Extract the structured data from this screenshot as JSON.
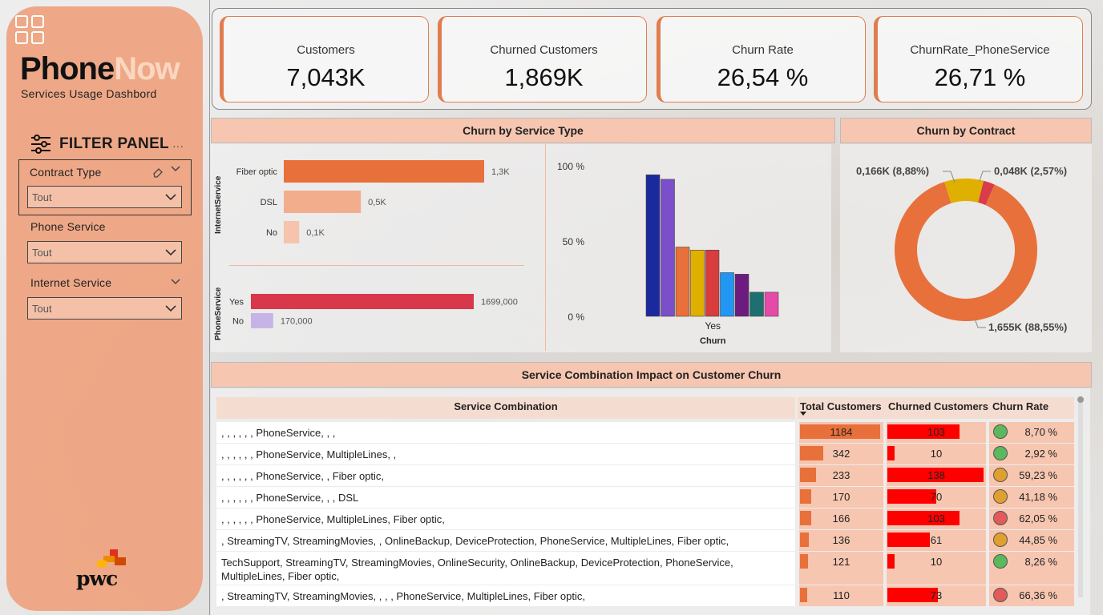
{
  "brand": {
    "name_part1": "Phone",
    "name_part2": "Now",
    "subtitle": "Services Usage Dashbord"
  },
  "filter_panel": {
    "title": "FILTER PANEL",
    "more": "···",
    "filters": [
      {
        "label": "Contract Type",
        "value": "Tout"
      },
      {
        "label": "Phone Service",
        "value": "Tout"
      },
      {
        "label": "Internet Service",
        "value": "Tout"
      }
    ]
  },
  "footer_logo": "pwc",
  "kpis": [
    {
      "title": "Customers",
      "value": "7,043K"
    },
    {
      "title": "Churned Customers",
      "value": "1,869K"
    },
    {
      "title": "Churn Rate",
      "value": "26,54 %"
    },
    {
      "title": "ChurnRate_PhoneService",
      "value": "26,71 %"
    }
  ],
  "panels": {
    "service_type": "Churn by Service Type",
    "contract": "Churn by Contract",
    "combination": "Service Combination Impact on Customer Churn"
  },
  "colors": {
    "accent": "#e8703b",
    "sidebar": "#eda583",
    "header": "#f6c6b0",
    "churn_red": "#ff0000"
  },
  "chart_data": [
    {
      "type": "bar",
      "orientation": "horizontal",
      "group_label": "InternetService",
      "categories": [
        "Fiber optic",
        "DSL",
        "No"
      ],
      "values": [
        1300,
        500,
        100
      ],
      "data_labels": [
        "1,3K",
        "0,5K",
        "0,1K"
      ],
      "colors": [
        "#e8703b",
        "#f2ad8d",
        "#f6c3ad"
      ]
    },
    {
      "type": "bar",
      "orientation": "horizontal",
      "group_label": "PhoneService",
      "categories": [
        "Yes",
        "No"
      ],
      "values": [
        1699000,
        170000
      ],
      "data_labels": [
        "1699,000",
        "170,000"
      ],
      "colors": [
        "#d9374a",
        "#c6b4e6"
      ]
    },
    {
      "type": "bar",
      "xlabel": "Churn",
      "categories": [
        "Yes"
      ],
      "yticks": [
        "100 %",
        "50 %",
        "0 %"
      ],
      "ylim": [
        0,
        100
      ],
      "series": [
        {
          "values": [
            94
          ],
          "color": "#1a2a9c"
        },
        {
          "values": [
            91
          ],
          "color": "#7a4fc9"
        },
        {
          "values": [
            46
          ],
          "color": "#e8703b"
        },
        {
          "values": [
            44
          ],
          "color": "#e0b000"
        },
        {
          "values": [
            44
          ],
          "color": "#d83c3c"
        },
        {
          "values": [
            29
          ],
          "color": "#2196f3"
        },
        {
          "values": [
            28
          ],
          "color": "#6e1b80"
        },
        {
          "values": [
            16
          ],
          "color": "#1e6f70"
        },
        {
          "values": [
            16
          ],
          "color": "#e64aa9"
        }
      ]
    },
    {
      "type": "pie",
      "donut": true,
      "slices": [
        {
          "value": 1655,
          "label": "1,655K (88,55%)",
          "color": "#e8703b"
        },
        {
          "value": 166,
          "label": "0,166K (8,88%)",
          "color": "#e0b000"
        },
        {
          "value": 48,
          "label": "0,048K (2,57%)",
          "color": "#d83c4a"
        }
      ]
    }
  ],
  "table": {
    "headers": [
      "Service Combination",
      "Total Customers",
      "Churned Customers",
      "Churn Rate"
    ],
    "max_total": 1184,
    "max_churned": 138,
    "rows": [
      {
        "combo": ", , , , , , PhoneService, , ,",
        "total": 1184,
        "churned": 103,
        "rate": "8,70 %",
        "status": "green"
      },
      {
        "combo": ", , , , , , PhoneService, MultipleLines, ,",
        "total": 342,
        "churned": 10,
        "rate": "2,92 %",
        "status": "green"
      },
      {
        "combo": ", , , , , , PhoneService, , Fiber optic,",
        "total": 233,
        "churned": 138,
        "rate": "59,23 %",
        "status": "orange"
      },
      {
        "combo": ", , , , , , PhoneService, , , DSL",
        "total": 170,
        "churned": 70,
        "rate": "41,18 %",
        "status": "orange"
      },
      {
        "combo": ", , , , , , PhoneService, MultipleLines, Fiber optic,",
        "total": 166,
        "churned": 103,
        "rate": "62,05 %",
        "status": "red"
      },
      {
        "combo": ", StreamingTV, StreamingMovies, , OnlineBackup, DeviceProtection, PhoneService, MultipleLines, Fiber optic,",
        "total": 136,
        "churned": 61,
        "rate": "44,85 %",
        "status": "orange"
      },
      {
        "combo": "TechSupport, StreamingTV, StreamingMovies, OnlineSecurity, OnlineBackup, DeviceProtection, PhoneService, MultipleLines, Fiber optic,",
        "total": 121,
        "churned": 10,
        "rate": "8,26 %",
        "status": "green"
      },
      {
        "combo": ", StreamingTV, StreamingMovies, , , , PhoneService, MultipleLines, Fiber optic,",
        "total": 110,
        "churned": 73,
        "rate": "66,36 %",
        "status": "red"
      }
    ]
  }
}
